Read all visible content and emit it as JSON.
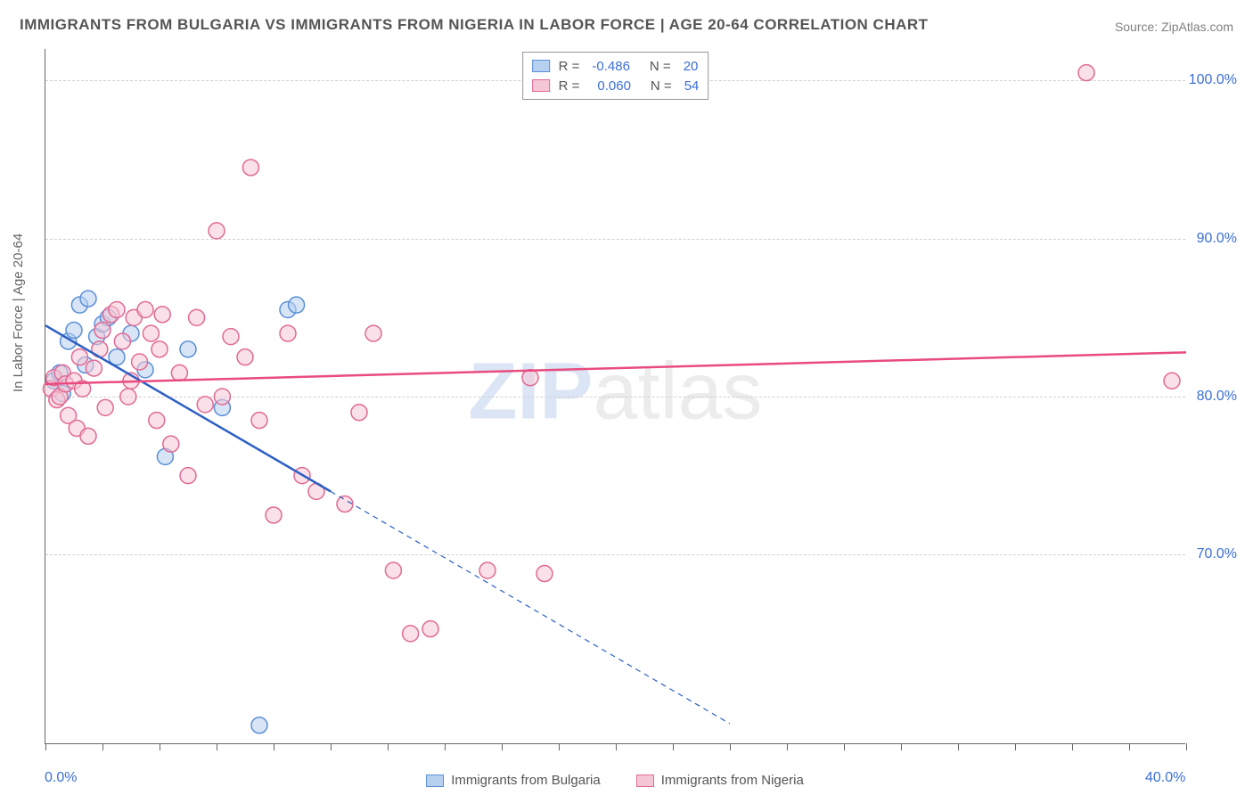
{
  "title": "IMMIGRANTS FROM BULGARIA VS IMMIGRANTS FROM NIGERIA IN LABOR FORCE | AGE 20-64 CORRELATION CHART",
  "source": "Source: ZipAtlas.com",
  "y_axis_title": "In Labor Force | Age 20-64",
  "watermark_z": "ZIP",
  "watermark_rest": "atlas",
  "chart": {
    "type": "scatter-correlation",
    "xlim": [
      0,
      40
    ],
    "ylim": [
      58,
      102
    ],
    "x_ticks_minor": [
      0,
      2,
      4,
      6,
      8,
      10,
      12,
      14,
      16,
      18,
      20,
      22,
      24,
      26,
      28,
      30,
      32,
      34,
      36,
      38,
      40
    ],
    "x_tick_labels": [
      {
        "v": 0,
        "label": "0.0%"
      },
      {
        "v": 40,
        "label": "40.0%"
      }
    ],
    "y_gridlines": [
      70,
      80,
      90,
      100
    ],
    "y_tick_labels": [
      {
        "v": 70,
        "label": "70.0%"
      },
      {
        "v": 80,
        "label": "80.0%"
      },
      {
        "v": 90,
        "label": "90.0%"
      },
      {
        "v": 100,
        "label": "100.0%"
      }
    ],
    "marker_radius": 9,
    "marker_stroke_width": 1.5,
    "line_width": 2.5,
    "series": [
      {
        "id": "bulgaria",
        "label": "Immigrants from Bulgaria",
        "R": "-0.486",
        "N": "20",
        "fill": "#b8d0f0",
        "stroke": "#5a8fd6",
        "line_color": "#2c5fc4",
        "trend_solid": {
          "x1": 0,
          "y1": 84.5,
          "x2": 10,
          "y2": 74.0
        },
        "trend_dashed": {
          "x1": 10,
          "y1": 74.0,
          "x2": 24,
          "y2": 59.3
        },
        "points": [
          [
            0.3,
            81.0
          ],
          [
            0.5,
            81.5
          ],
          [
            0.6,
            80.2
          ],
          [
            0.8,
            83.5
          ],
          [
            1.0,
            84.2
          ],
          [
            1.2,
            85.8
          ],
          [
            1.4,
            82.0
          ],
          [
            1.5,
            86.2
          ],
          [
            1.8,
            83.8
          ],
          [
            2.0,
            84.6
          ],
          [
            2.2,
            85.0
          ],
          [
            2.5,
            82.5
          ],
          [
            3.0,
            84.0
          ],
          [
            3.5,
            81.7
          ],
          [
            4.2,
            76.2
          ],
          [
            5.0,
            83.0
          ],
          [
            6.2,
            79.3
          ],
          [
            7.5,
            59.2
          ],
          [
            8.5,
            85.5
          ],
          [
            8.8,
            85.8
          ]
        ]
      },
      {
        "id": "nigeria",
        "label": "Immigrants from Nigeria",
        "R": "0.060",
        "N": "54",
        "fill": "#f5c6d6",
        "stroke": "#e06a94",
        "line_color": "#e94b7f",
        "trend_solid": {
          "x1": 0,
          "y1": 80.8,
          "x2": 40,
          "y2": 82.8
        },
        "points": [
          [
            0.2,
            80.5
          ],
          [
            0.3,
            81.2
          ],
          [
            0.4,
            79.8
          ],
          [
            0.5,
            80.0
          ],
          [
            0.6,
            81.5
          ],
          [
            0.7,
            80.8
          ],
          [
            0.8,
            78.8
          ],
          [
            1.0,
            81.0
          ],
          [
            1.1,
            78.0
          ],
          [
            1.3,
            80.5
          ],
          [
            1.5,
            77.5
          ],
          [
            1.7,
            81.8
          ],
          [
            1.9,
            83.0
          ],
          [
            2.1,
            79.3
          ],
          [
            2.3,
            85.2
          ],
          [
            2.5,
            85.5
          ],
          [
            2.7,
            83.5
          ],
          [
            2.9,
            80.0
          ],
          [
            3.1,
            85.0
          ],
          [
            3.3,
            82.2
          ],
          [
            3.5,
            85.5
          ],
          [
            3.7,
            84.0
          ],
          [
            3.9,
            78.5
          ],
          [
            4.1,
            85.2
          ],
          [
            4.4,
            77.0
          ],
          [
            4.7,
            81.5
          ],
          [
            5.0,
            75.0
          ],
          [
            5.3,
            85.0
          ],
          [
            5.6,
            79.5
          ],
          [
            6.0,
            90.5
          ],
          [
            6.2,
            80.0
          ],
          [
            6.5,
            83.8
          ],
          [
            7.0,
            82.5
          ],
          [
            7.2,
            94.5
          ],
          [
            7.5,
            78.5
          ],
          [
            8.0,
            72.5
          ],
          [
            8.5,
            84.0
          ],
          [
            9.0,
            75.0
          ],
          [
            9.5,
            74.0
          ],
          [
            10.5,
            73.2
          ],
          [
            11.0,
            79.0
          ],
          [
            11.5,
            84.0
          ],
          [
            12.2,
            69.0
          ],
          [
            12.8,
            65.0
          ],
          [
            13.5,
            65.3
          ],
          [
            15.5,
            69.0
          ],
          [
            17.0,
            81.2
          ],
          [
            17.5,
            68.8
          ],
          [
            36.5,
            100.5
          ],
          [
            39.5,
            81.0
          ],
          [
            1.2,
            82.5
          ],
          [
            2.0,
            84.2
          ],
          [
            3.0,
            81.0
          ],
          [
            4.0,
            83.0
          ]
        ]
      }
    ]
  }
}
